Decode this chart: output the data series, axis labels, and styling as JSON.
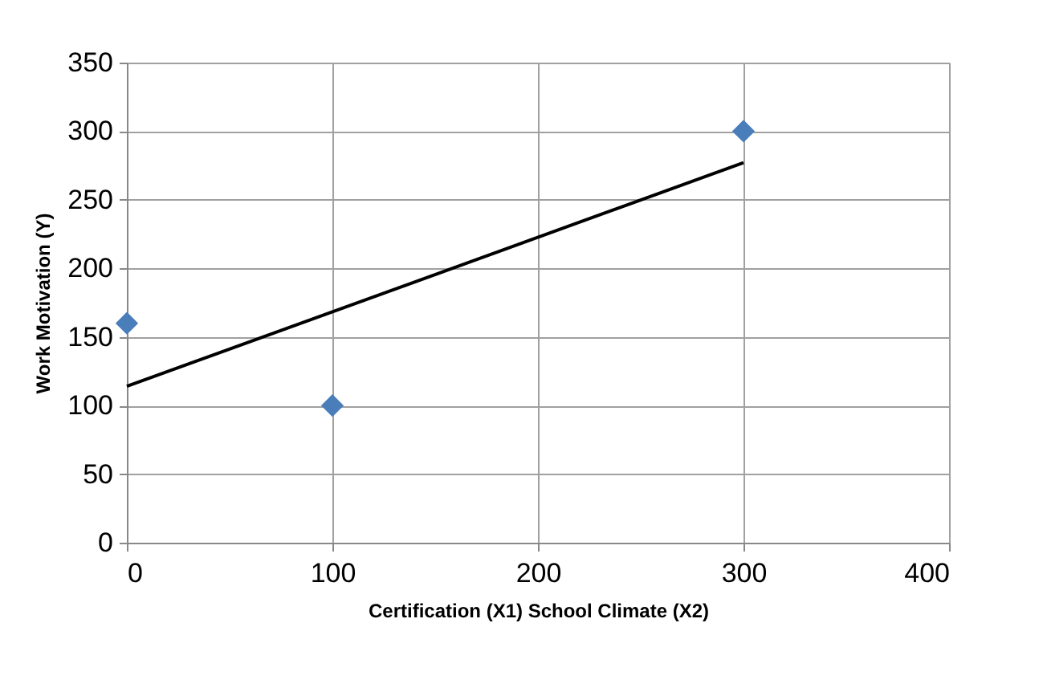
{
  "chart_data": {
    "type": "scatter",
    "xlabel": "Certification  (X1) School Climate (X2)",
    "ylabel": "Work Motivation (Y)",
    "x": [
      0,
      100,
      300
    ],
    "series": [
      {
        "color": "#4a7ebb",
        "values": [
          160,
          100,
          300
        ],
        "marker": "diamond"
      },
      {
        "type": "line",
        "color": "#000000",
        "x": [
          0,
          300
        ],
        "values": [
          114,
          277
        ],
        "marker": "none"
      }
    ],
    "xlim": [
      0,
      400
    ],
    "xticks": [
      0,
      100,
      200,
      300,
      400
    ],
    "ylim": [
      0,
      350
    ],
    "yticks": [
      0,
      50,
      100,
      150,
      200,
      250,
      300,
      350
    ],
    "grid": true
  }
}
